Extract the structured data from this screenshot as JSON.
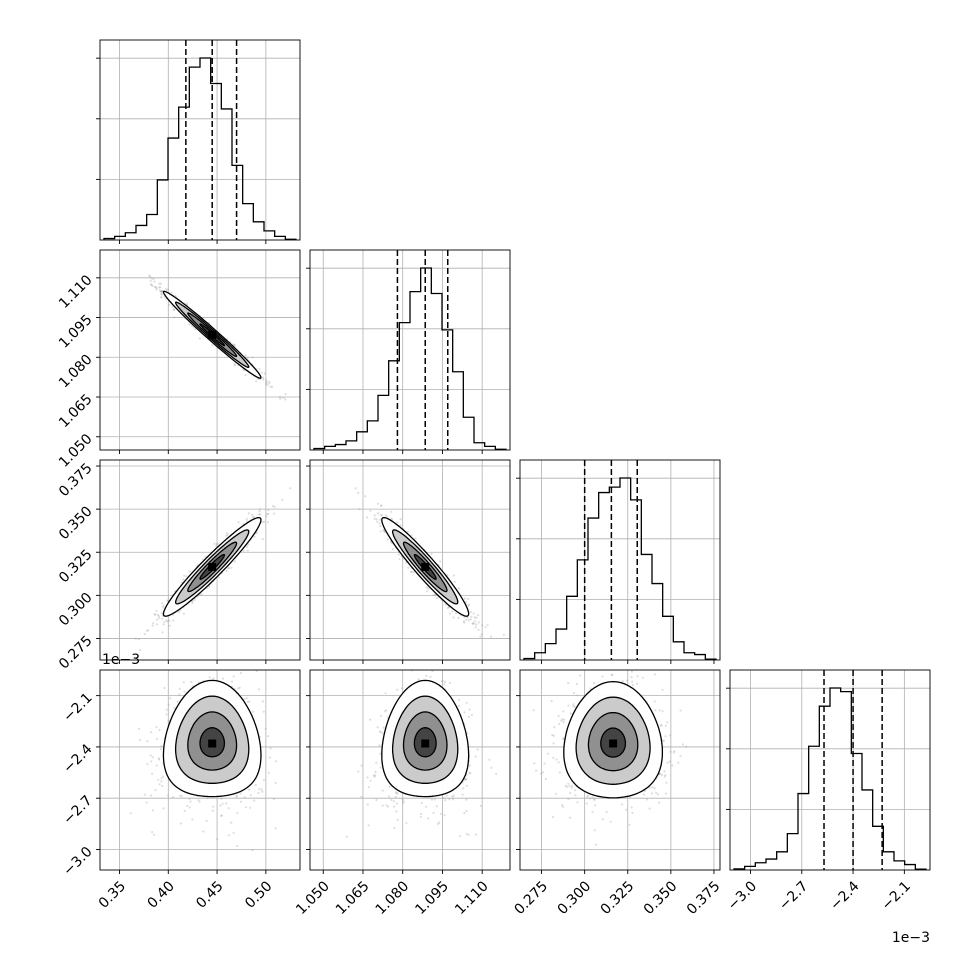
{
  "chart_data": {
    "type": "corner",
    "parameter_count": 4,
    "grid": true,
    "colors": {
      "line": "#000000",
      "grid": "#b0b0b0",
      "scatter": "#a0a0a0",
      "frame": "#000000"
    },
    "params": [
      {
        "range": [
          0.33,
          0.535
        ],
        "ticks": [
          0.35,
          0.4,
          0.45,
          0.5
        ],
        "tick_labels": [
          "0.35",
          "0.40",
          "0.45",
          "0.50"
        ],
        "quantiles": [
          0.418,
          0.445,
          0.47
        ]
      },
      {
        "range": [
          1.045,
          1.1205
        ],
        "ticks": [
          1.05,
          1.065,
          1.08,
          1.095,
          1.11
        ],
        "tick_labels": [
          "1.050",
          "1.065",
          "1.080",
          "1.095",
          "1.110"
        ],
        "quantiles": [
          1.078,
          1.0885,
          1.097
        ]
      },
      {
        "range": [
          0.2625,
          0.3785
        ],
        "ticks": [
          0.275,
          0.3,
          0.325,
          0.35,
          0.375
        ],
        "tick_labels": [
          "0.275",
          "0.300",
          "0.325",
          "0.350",
          "0.375"
        ],
        "quantiles": [
          0.3,
          0.3155,
          0.3305
        ]
      },
      {
        "range": [
          -3.12,
          -1.95
        ],
        "ticks": [
          -3.0,
          -2.7,
          -2.4,
          -2.1
        ],
        "tick_labels": [
          "−3.0",
          "−2.7",
          "−2.4",
          "−2.1"
        ],
        "quantiles": [
          -2.57,
          -2.4,
          -2.23
        ],
        "offset_label": "1e−3"
      }
    ],
    "histograms": [
      [
        0.008,
        0.02,
        0.04,
        0.08,
        0.14,
        0.33,
        0.56,
        0.73,
        0.95,
        1.0,
        0.86,
        0.72,
        0.41,
        0.2,
        0.1,
        0.05,
        0.02,
        0.004
      ],
      [
        0.008,
        0.02,
        0.03,
        0.05,
        0.1,
        0.16,
        0.3,
        0.49,
        0.7,
        0.87,
        1.0,
        0.86,
        0.66,
        0.43,
        0.18,
        0.04,
        0.02,
        0.004
      ],
      [
        0.008,
        0.04,
        0.09,
        0.17,
        0.35,
        0.55,
        0.78,
        0.92,
        0.95,
        1.0,
        0.88,
        0.58,
        0.42,
        0.24,
        0.1,
        0.04,
        0.03,
        0.005
      ],
      [
        0.006,
        0.02,
        0.04,
        0.06,
        0.1,
        0.2,
        0.42,
        0.68,
        0.9,
        1.0,
        0.98,
        0.64,
        0.44,
        0.24,
        0.1,
        0.05,
        0.03,
        0.005
      ]
    ],
    "pairs": [
      {
        "row": 1,
        "col": 0,
        "center": [
          0.445,
          1.0885
        ],
        "sigma": [
          0.025,
          0.0082
        ],
        "corr": -0.985
      },
      {
        "row": 2,
        "col": 0,
        "center": [
          0.445,
          0.3165
        ],
        "sigma": [
          0.025,
          0.0143
        ],
        "corr": 0.955
      },
      {
        "row": 2,
        "col": 1,
        "center": [
          1.0885,
          0.3165
        ],
        "sigma": [
          0.0082,
          0.0143
        ],
        "corr": -0.95
      },
      {
        "row": 3,
        "col": 0,
        "center": [
          0.445,
          -2.38
        ],
        "sigma": [
          0.025,
          0.17
        ],
        "corr": 0.0,
        "banana": 0.16
      },
      {
        "row": 3,
        "col": 1,
        "center": [
          1.0885,
          -2.38
        ],
        "sigma": [
          0.0082,
          0.17
        ],
        "corr": 0.0,
        "banana": 0.16
      },
      {
        "row": 3,
        "col": 2,
        "center": [
          0.3165,
          -2.38
        ],
        "sigma": [
          0.0143,
          0.17
        ],
        "corr": 0.0,
        "banana": 0.12
      }
    ],
    "contour_levels_sigma": [
      0.5,
      1.0,
      1.5,
      2.0
    ],
    "offset_labels": [
      {
        "axis": "y",
        "row": 3,
        "text": "1e−3"
      },
      {
        "axis": "x",
        "col": 3,
        "text": "1e−3"
      }
    ]
  }
}
